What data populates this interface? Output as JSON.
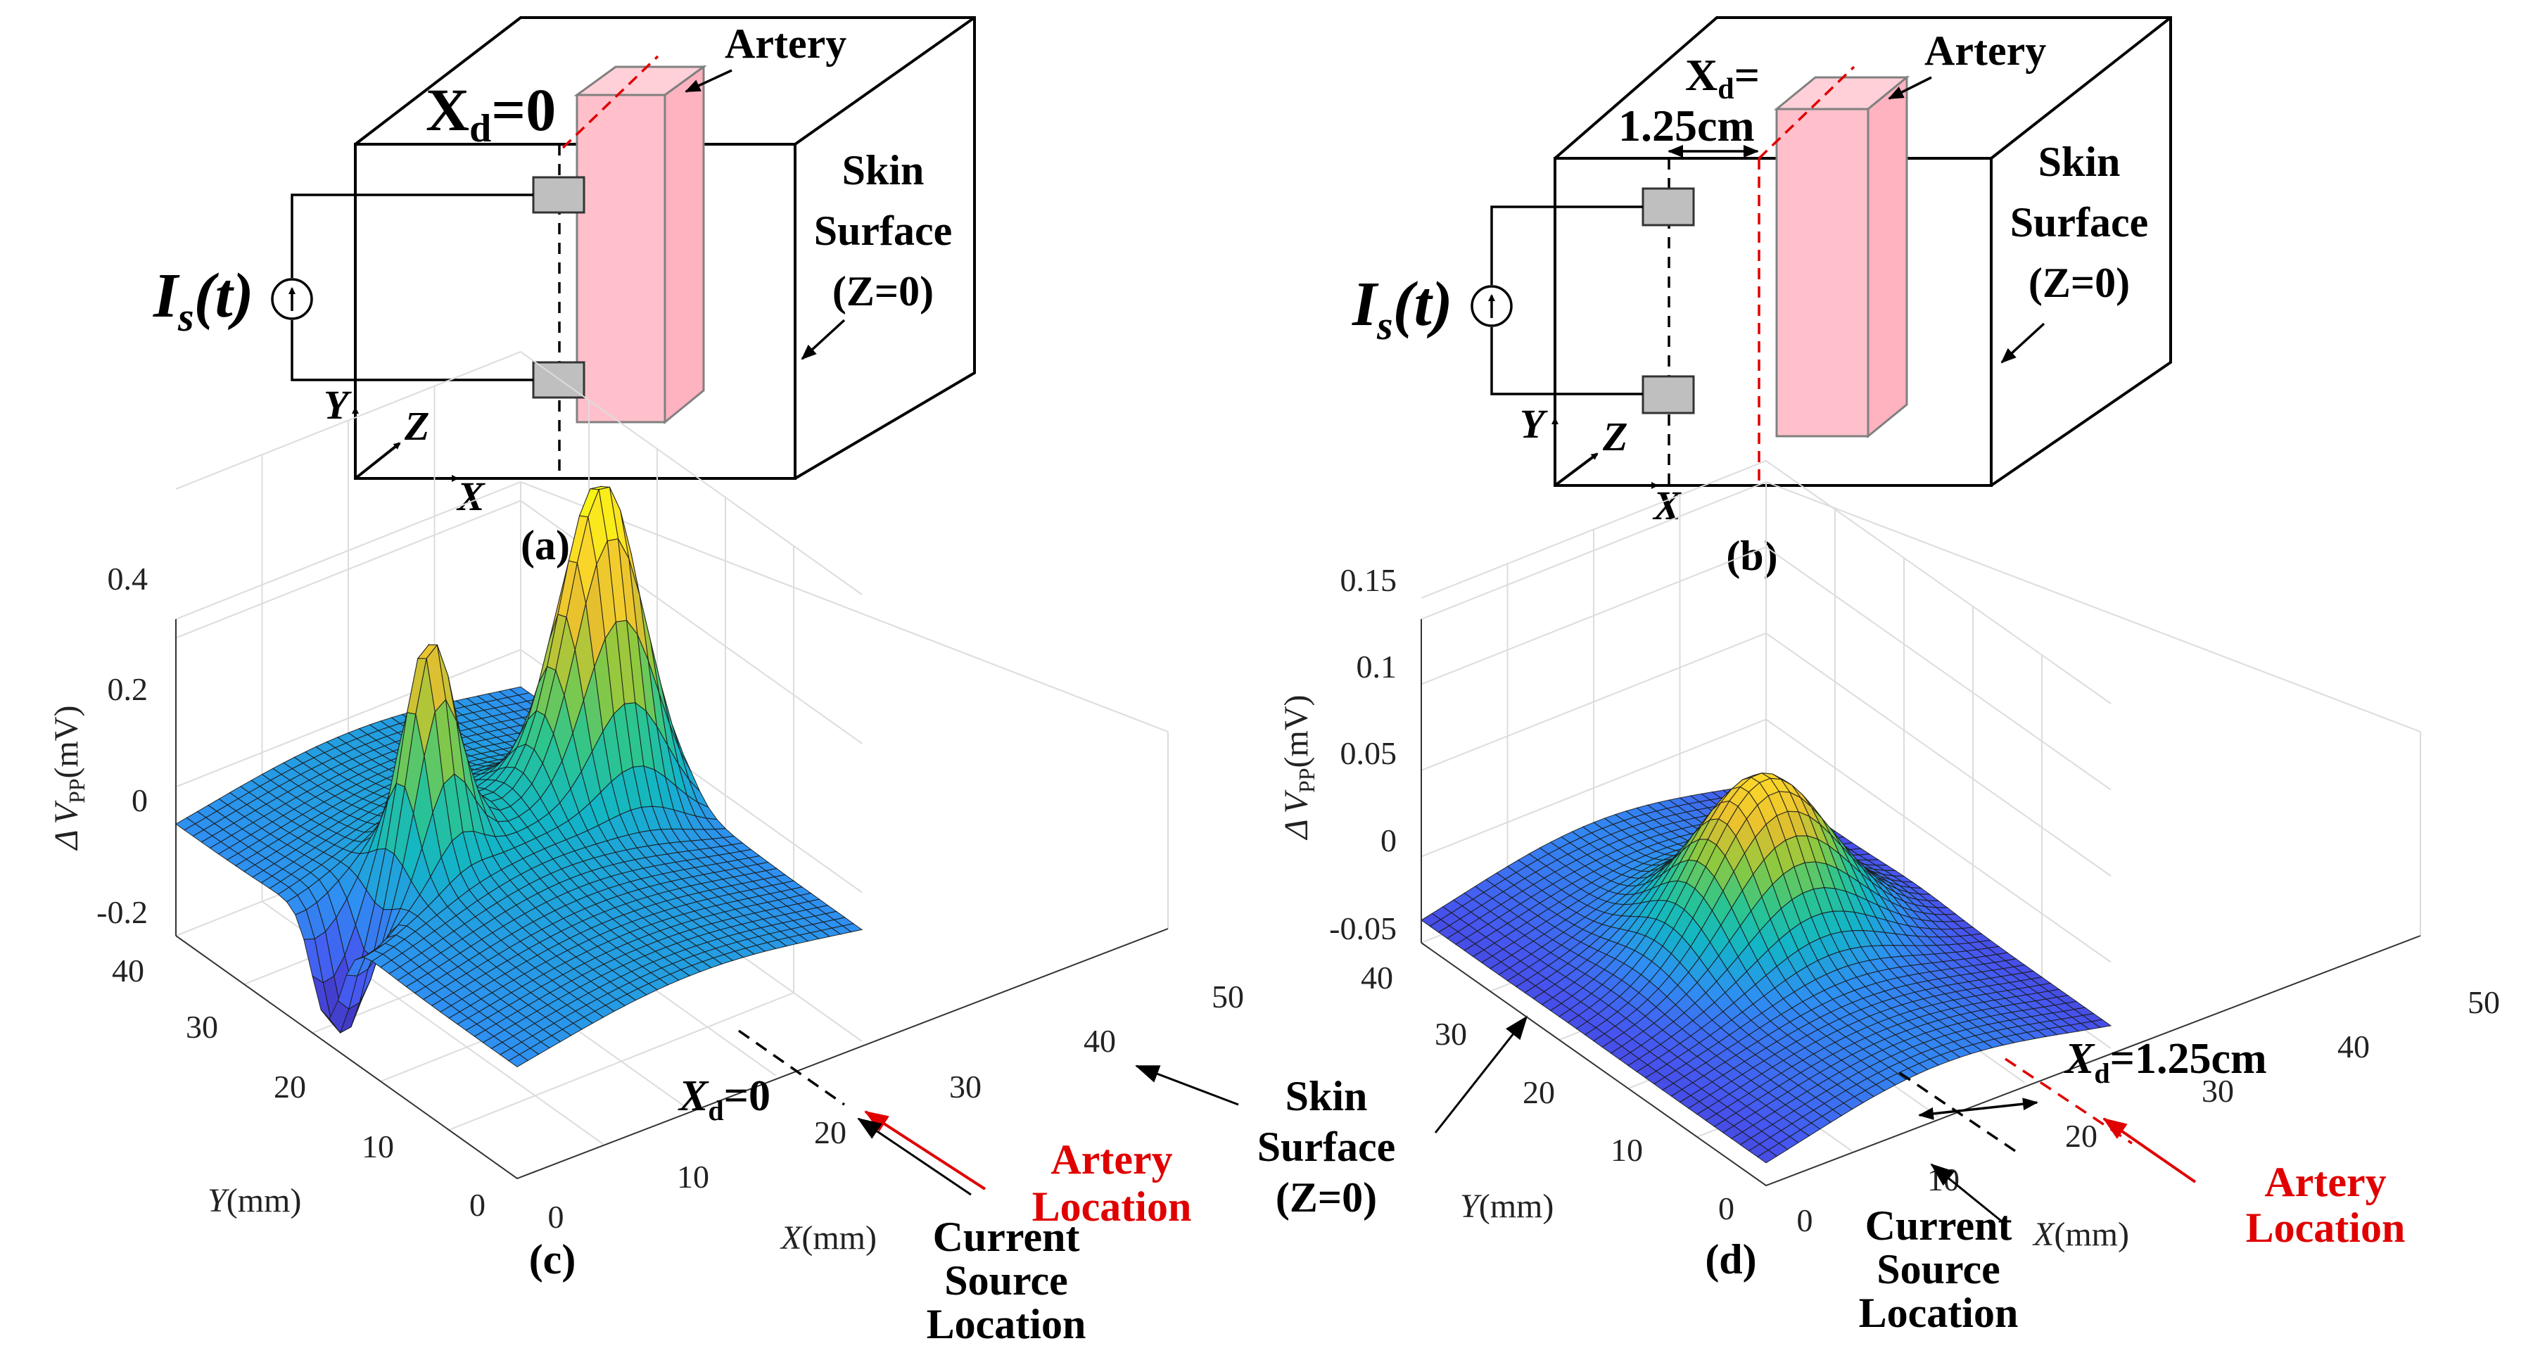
{
  "diagram_a": {
    "xd_main": "X",
    "xd_sub": "d",
    "xd_value": "=0",
    "artery": "Artery",
    "skin": [
      "Skin",
      "Surface",
      "(Z=0)"
    ],
    "source_main": "I",
    "source_sub": "s",
    "source_arg": "(t)",
    "axis_y": "Y",
    "axis_z": "Z",
    "axis_x": "X",
    "caption": "(a)"
  },
  "diagram_b": {
    "xd_main": "X",
    "xd_sub": "d",
    "xd_value": "=",
    "xd_value2": "1.25cm",
    "artery": "Artery",
    "skin": [
      "Skin",
      "Surface",
      "(Z=0)"
    ],
    "source_main": "I",
    "source_sub": "s",
    "source_arg": "(t)",
    "axis_y": "Y",
    "axis_z": "Z",
    "axis_x": "X",
    "caption": "(b)"
  },
  "plot_c": {
    "zticks": [
      "0.4",
      "0.2",
      "0",
      "-0.2"
    ],
    "yticks": [
      "40",
      "30",
      "20",
      "10",
      "0"
    ],
    "xticks": [
      "0",
      "10",
      "20",
      "30",
      "40",
      "50"
    ],
    "zlabel_delta": "Δ",
    "zlabel_v": "V",
    "zlabel_sub": "PP",
    "zlabel_unit": "(mV)",
    "ylabel": "Y",
    "ylabel_unit": "(mm)",
    "xlabel": "X",
    "xlabel_unit": "(mm)",
    "xd_main": "X",
    "xd_sub": "d",
    "xd_value": "=0",
    "artery_loc": [
      "Artery",
      "Location"
    ],
    "source_loc": [
      "Current",
      "Source",
      "Location"
    ],
    "caption": "(c)"
  },
  "plot_d": {
    "zticks": [
      "0.15",
      "0.1",
      "0.05",
      "0",
      "-0.05"
    ],
    "yticks": [
      "40",
      "30",
      "20",
      "10",
      "0"
    ],
    "xticks": [
      "0",
      "10",
      "20",
      "30",
      "40",
      "50"
    ],
    "zlabel_delta": "Δ",
    "zlabel_v": "V",
    "zlabel_sub": "PP",
    "zlabel_unit": "(mV)",
    "ylabel": "Y",
    "ylabel_unit": "(mm)",
    "xlabel": "X",
    "xlabel_unit": "(mm)",
    "xd_main": "X",
    "xd_sub": "d",
    "xd_value": "=1.25cm",
    "artery_loc": [
      "Artery",
      "Location"
    ],
    "source_loc": [
      "Current",
      "Source",
      "Location"
    ],
    "caption": "(d)"
  },
  "skin_middle": [
    "Skin",
    "Surface",
    "(Z=0)"
  ],
  "colors": {
    "artery_fill": "#ffc0cb",
    "artery_edge": "#808080",
    "electrode": "#bfbfbf",
    "red": "#e00000",
    "colormap": [
      "#3e26a8",
      "#4755f0",
      "#2f8ff2",
      "#12b5c7",
      "#2dc58e",
      "#8ec93f",
      "#e6bf2f",
      "#fbd72a",
      "#f9fb0e"
    ]
  },
  "chart_data": [
    {
      "type": "surface",
      "panel": "(c)",
      "x_range_mm": [
        0,
        50
      ],
      "y_range_mm": [
        0,
        40
      ],
      "z_range_mV": [
        -0.2,
        0.4
      ],
      "current_source_x_mm": 22,
      "artery_x_mm": 22,
      "features": {
        "peak_1": {
          "x_mm": 22,
          "y_mm": 32,
          "z_mV": 0.33
        },
        "peak_2": {
          "x_mm": 22,
          "y_mm": 12,
          "z_mV": 0.2
        },
        "trough": {
          "x_mm": 22,
          "y_mm": 0,
          "z_mV": -0.2
        },
        "edge_value_mV": -0.08
      }
    },
    {
      "type": "surface",
      "panel": "(d)",
      "x_range_mm": [
        0,
        50
      ],
      "y_range_mm": [
        0,
        40
      ],
      "z_range_mV": [
        -0.05,
        0.15
      ],
      "current_source_x_mm": 22,
      "artery_x_mm": 34.5,
      "features": {
        "peak": {
          "x_mm": 22,
          "y_mm": 22,
          "z_mV": 0.06
        },
        "edge_value_mV": -0.05
      }
    }
  ]
}
